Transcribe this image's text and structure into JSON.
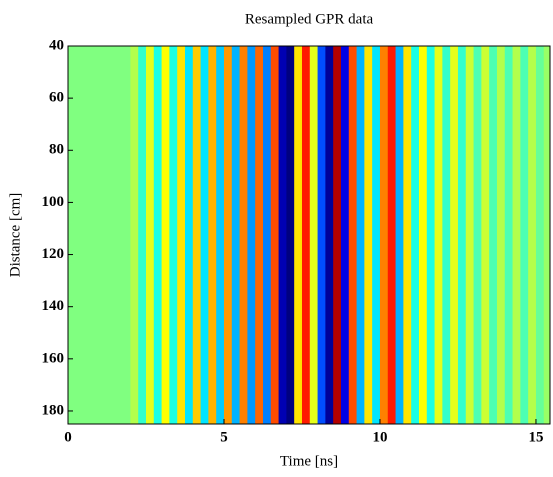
{
  "chart_data": {
    "type": "heatmap",
    "title": "Resampled GPR data",
    "xlabel": "Time [ns]",
    "ylabel": "Distance [cm]",
    "colormap": "jet",
    "clim": [
      -1,
      1
    ],
    "y_reversed": true,
    "x": [
      0,
      0.25,
      0.5,
      0.75,
      1,
      1.25,
      1.5,
      1.75,
      2,
      2.25,
      2.5,
      2.75,
      3,
      3.25,
      3.5,
      3.75,
      4,
      4.25,
      4.5,
      4.75,
      5,
      5.25,
      5.5,
      5.75,
      6,
      6.25,
      6.5,
      6.75,
      7,
      7.25,
      7.5,
      7.75,
      8,
      8.25,
      8.5,
      8.75,
      9,
      9.25,
      9.5,
      9.75,
      10,
      10.25,
      10.5,
      10.75,
      11,
      11.25,
      11.5,
      11.75,
      12,
      12.25,
      12.5,
      12.75,
      13,
      13.25,
      13.5,
      13.75,
      14,
      14.25,
      14.5,
      14.75,
      15,
      15.25
    ],
    "values": [
      0,
      0,
      0,
      0,
      0,
      0,
      0,
      0,
      0.1,
      -0.15,
      0.2,
      -0.2,
      0.25,
      -0.2,
      0.3,
      -0.3,
      0.35,
      -0.3,
      0.4,
      -0.35,
      0.45,
      -0.4,
      0.5,
      -0.45,
      0.55,
      -0.5,
      0.6,
      -0.9,
      -1,
      0.3,
      0.7,
      0.2,
      -0.6,
      -0.95,
      0.9,
      -0.8,
      0.6,
      -0.4,
      0.3,
      -0.3,
      0.5,
      0.7,
      -0.4,
      0.3,
      -0.2,
      0.25,
      -0.2,
      0.2,
      -0.15,
      0.2,
      -0.15,
      0.15,
      -0.1,
      0.15,
      -0.1,
      0.1,
      -0.1,
      0.1,
      -0.1,
      0.1,
      -0.05,
      0.05
    ],
    "xlim": [
      0,
      15.45
    ],
    "ylim": [
      40,
      185
    ],
    "xticks": [
      0,
      5,
      10,
      15
    ],
    "yticks": [
      40,
      60,
      80,
      100,
      120,
      140,
      160,
      180
    ]
  }
}
